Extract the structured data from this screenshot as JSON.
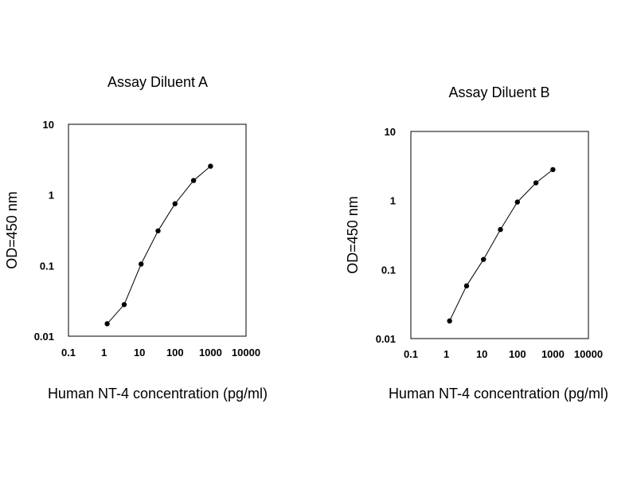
{
  "chart_data": [
    {
      "type": "line",
      "title": "Assay Diluent A",
      "xlabel": "Human NT-4  concentration (pg/ml)",
      "ylabel": "OD=450 nm",
      "xscale": "log",
      "yscale": "log",
      "xlim": [
        0.1,
        10000
      ],
      "ylim": [
        0.01,
        10
      ],
      "xticks": [
        "0.1",
        "1",
        "10",
        "100",
        "1000",
        "10000"
      ],
      "yticks": [
        "0.01",
        "0.1",
        "1",
        "10"
      ],
      "grid": false,
      "series": [
        {
          "x": [
            1.23,
            3.7,
            11.1,
            33.3,
            100,
            333,
            1000
          ],
          "y": [
            0.015,
            0.028,
            0.105,
            0.31,
            0.75,
            1.6,
            2.55
          ]
        }
      ]
    },
    {
      "type": "line",
      "title": "Assay Diluent B",
      "xlabel": "Human NT-4  concentration (pg/ml)",
      "ylabel": "OD=450 nm",
      "xscale": "log",
      "yscale": "log",
      "xlim": [
        0.1,
        10000
      ],
      "ylim": [
        0.01,
        10
      ],
      "xticks": [
        "0.1",
        "1",
        "10",
        "100",
        "1000",
        "10000"
      ],
      "yticks": [
        "0.01",
        "0.1",
        "1",
        "10"
      ],
      "grid": false,
      "series": [
        {
          "x": [
            1.23,
            3.7,
            11.1,
            33.3,
            100,
            333,
            1000
          ],
          "y": [
            0.018,
            0.058,
            0.14,
            0.38,
            0.95,
            1.8,
            2.8
          ]
        }
      ]
    }
  ]
}
